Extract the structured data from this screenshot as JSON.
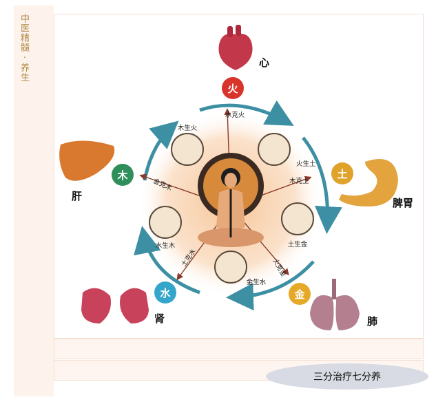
{
  "sidebar": {
    "title": "中医精髓 · 养生"
  },
  "elements": {
    "fire": "火",
    "earth": "土",
    "metal": "金",
    "water": "水",
    "wood": "木"
  },
  "organs": {
    "heart": "心",
    "spleen_stomach": "脾胃",
    "lung": "肺",
    "kidney": "肾",
    "liver": "肝"
  },
  "cycle": {
    "wood_fire": "木生火",
    "fire_earth": "火生土",
    "earth_metal": "土生金",
    "metal_water": "金生水",
    "water_wood": "水生木"
  },
  "control": {
    "water_fire": "水克火",
    "wood_earth": "木克土",
    "fire_metal": "火克金",
    "earth_water": "土克水",
    "metal_wood": "金克木"
  },
  "tagline": "三分治疗七分养",
  "colors": {
    "fire": "#d9342b",
    "earth": "#e0a22a",
    "metal": "#e6a827",
    "water": "#34a6c9",
    "wood": "#2f8f5a",
    "arc": "#3d8fa3"
  }
}
